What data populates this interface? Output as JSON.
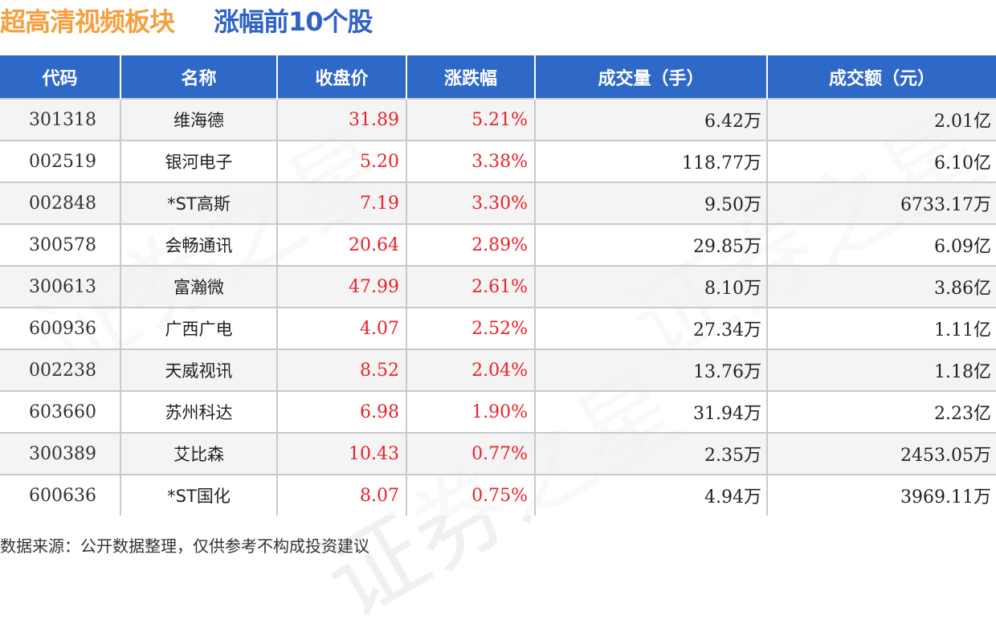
{
  "title": {
    "main": "超高清视频板块",
    "sub": "涨幅前10个股"
  },
  "colors": {
    "title_main": "#f5a040",
    "title_sub": "#2f63c6",
    "header_bg": "#2f69c8",
    "up_red": "#e8232b"
  },
  "table": {
    "headers": [
      "代码",
      "名称",
      "收盘价",
      "涨跌幅",
      "成交量（手）",
      "成交额（元）"
    ],
    "rows": [
      {
        "code": "301318",
        "name": "维海德",
        "close": "31.89",
        "change": "5.21%",
        "volume": "6.42万",
        "amount": "2.01亿"
      },
      {
        "code": "002519",
        "name": "银河电子",
        "close": "5.20",
        "change": "3.38%",
        "volume": "118.77万",
        "amount": "6.10亿"
      },
      {
        "code": "002848",
        "name": "*ST高斯",
        "close": "7.19",
        "change": "3.30%",
        "volume": "9.50万",
        "amount": "6733.17万"
      },
      {
        "code": "300578",
        "name": "会畅通讯",
        "close": "20.64",
        "change": "2.89%",
        "volume": "29.85万",
        "amount": "6.09亿"
      },
      {
        "code": "300613",
        "name": "富瀚微",
        "close": "47.99",
        "change": "2.61%",
        "volume": "8.10万",
        "amount": "3.86亿"
      },
      {
        "code": "600936",
        "name": "广西广电",
        "close": "4.07",
        "change": "2.52%",
        "volume": "27.34万",
        "amount": "1.11亿"
      },
      {
        "code": "002238",
        "name": "天威视讯",
        "close": "8.52",
        "change": "2.04%",
        "volume": "13.76万",
        "amount": "1.18亿"
      },
      {
        "code": "603660",
        "name": "苏州科达",
        "close": "6.98",
        "change": "1.90%",
        "volume": "31.94万",
        "amount": "2.23亿"
      },
      {
        "code": "300389",
        "name": "艾比森",
        "close": "10.43",
        "change": "0.77%",
        "volume": "2.35万",
        "amount": "2453.05万"
      },
      {
        "code": "600636",
        "name": "*ST国化",
        "close": "8.07",
        "change": "0.75%",
        "volume": "4.94万",
        "amount": "3969.11万"
      }
    ]
  },
  "watermark": "证券之星",
  "footer": "数据来源：公开数据整理，仅供参考不构成投资建议"
}
